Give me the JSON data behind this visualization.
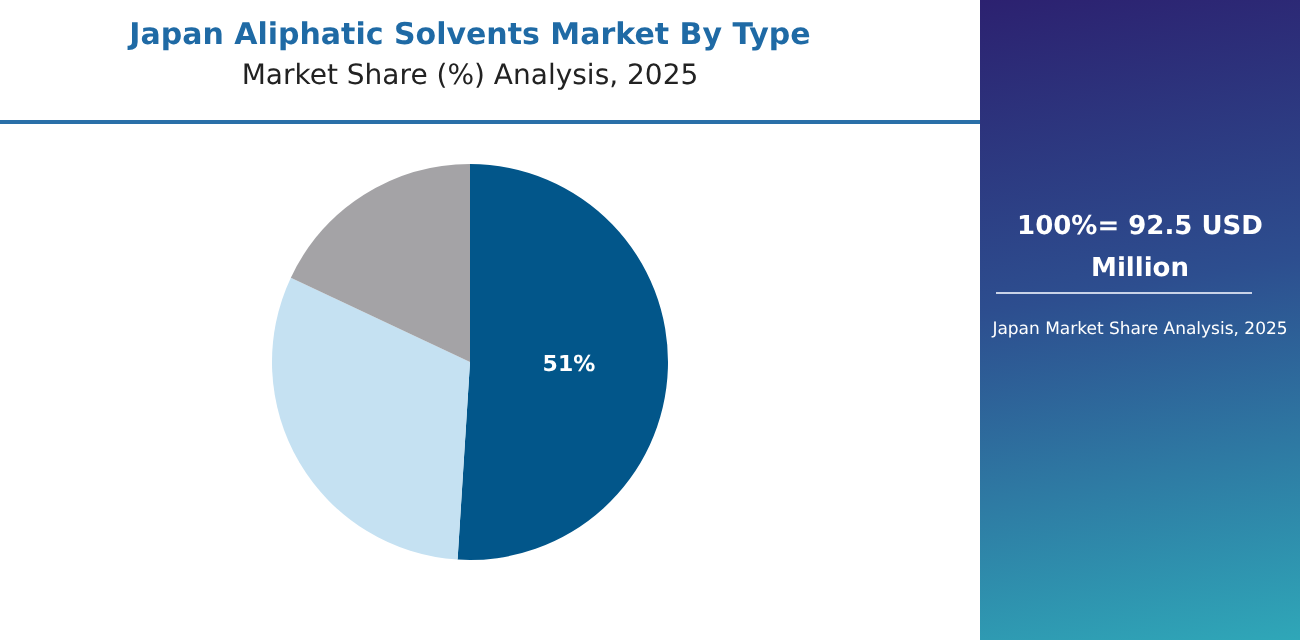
{
  "chart_data": {
    "type": "pie",
    "title": "Japan Aliphatic Solvents Market By Type",
    "subtitle": "Market Share (%) Analysis, 2025",
    "categories": [
      null,
      null,
      null
    ],
    "values": [
      51,
      31,
      18
    ],
    "colors": [
      "#02568a",
      "#c5e1f2",
      "#a4a3a6"
    ],
    "value_labels": [
      "51%",
      null,
      null
    ],
    "legend": false,
    "annotations": [
      "100%= 92.5 USD Million",
      "Japan Market Share Analysis, 2025"
    ]
  }
}
